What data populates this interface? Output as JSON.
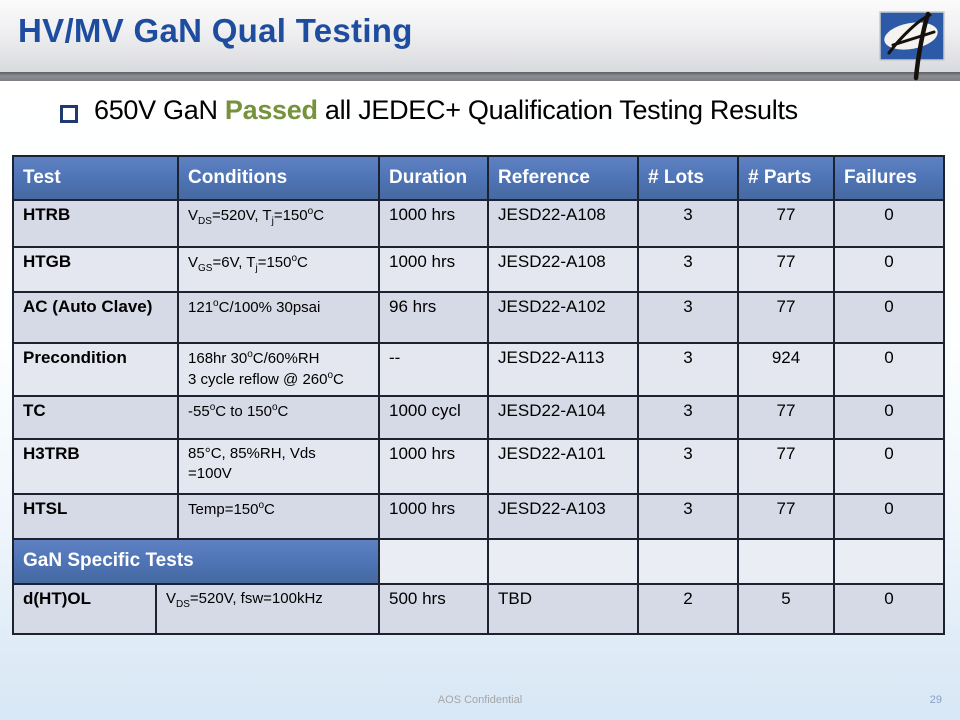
{
  "slide": {
    "title": "HV/MV GaN Qual Testing",
    "bullet": {
      "pre": "650V GaN ",
      "highlight": "Passed",
      "post": " all JEDEC+ Qualification Testing Results"
    },
    "footer": {
      "confidential": "AOS Confidential",
      "page": "29"
    },
    "logo_name": "aos-logo"
  },
  "colors": {
    "title_blue": "#1e4da0",
    "header_blue": "#4e73b4",
    "highlight_green": "#76923c",
    "row_shade_dark": "#d6d9e6",
    "row_shade_light": "#e4e7f0",
    "table_border": "#1c2230",
    "graybar": "#7c8084"
  },
  "table": {
    "headers": [
      "Test",
      "Conditions",
      "Duration",
      "Reference",
      "# Lots",
      "# Parts",
      "Failures"
    ],
    "rows": [
      {
        "test": "HTRB",
        "conditions_html": "V<sub>DS</sub>=520V, T<sub>j</sub>=150<sup>o</sup>C",
        "duration": "1000 hrs",
        "reference": "JESD22-A108",
        "lots": "3",
        "parts": "77",
        "failures": "0"
      },
      {
        "test": "HTGB",
        "conditions_html": "V<sub>GS</sub>=6V, T<sub>j</sub>=150<sup>o</sup>C",
        "duration": "1000 hrs",
        "reference": "JESD22-A108",
        "lots": "3",
        "parts": "77",
        "failures": "0"
      },
      {
        "test": "AC (Auto Clave)",
        "conditions_html": "121<sup>o</sup>C/100% 30psai",
        "duration": "96 hrs",
        "reference": "JESD22-A102",
        "lots": "3",
        "parts": "77",
        "failures": "0"
      },
      {
        "test": "Precondition",
        "conditions_html": "168hr 30<sup>o</sup>C/60%RH<br>3 cycle reflow @ 260<sup>o</sup>C",
        "duration": "--",
        "reference": "JESD22-A113",
        "lots": "3",
        "parts": "924",
        "failures": "0"
      },
      {
        "test": "TC",
        "conditions_html": "-55<sup>o</sup>C to 150<sup>o</sup>C",
        "duration": "1000 cycl",
        "reference": "JESD22-A104",
        "lots": "3",
        "parts": "77",
        "failures": "0"
      },
      {
        "test": "H3TRB",
        "conditions_html": "85&deg;C, 85%RH, Vds<br>=100V",
        "duration": "1000 hrs",
        "reference": "JESD22-A101",
        "lots": "3",
        "parts": "77",
        "failures": "0"
      },
      {
        "test": "HTSL",
        "conditions_html": "Temp=150<sup>o</sup>C",
        "duration": "1000 hrs",
        "reference": "JESD22-A103",
        "lots": "3",
        "parts": "77",
        "failures": "0"
      }
    ],
    "section_label": "GaN Specific Tests",
    "gan_rows": [
      {
        "test": "d(HT)OL",
        "conditions_html": "V<sub>DS</sub>=520V, fsw=100kHz",
        "duration": "500 hrs",
        "reference": "TBD",
        "lots": "2",
        "parts": "5",
        "failures": "0"
      }
    ]
  }
}
